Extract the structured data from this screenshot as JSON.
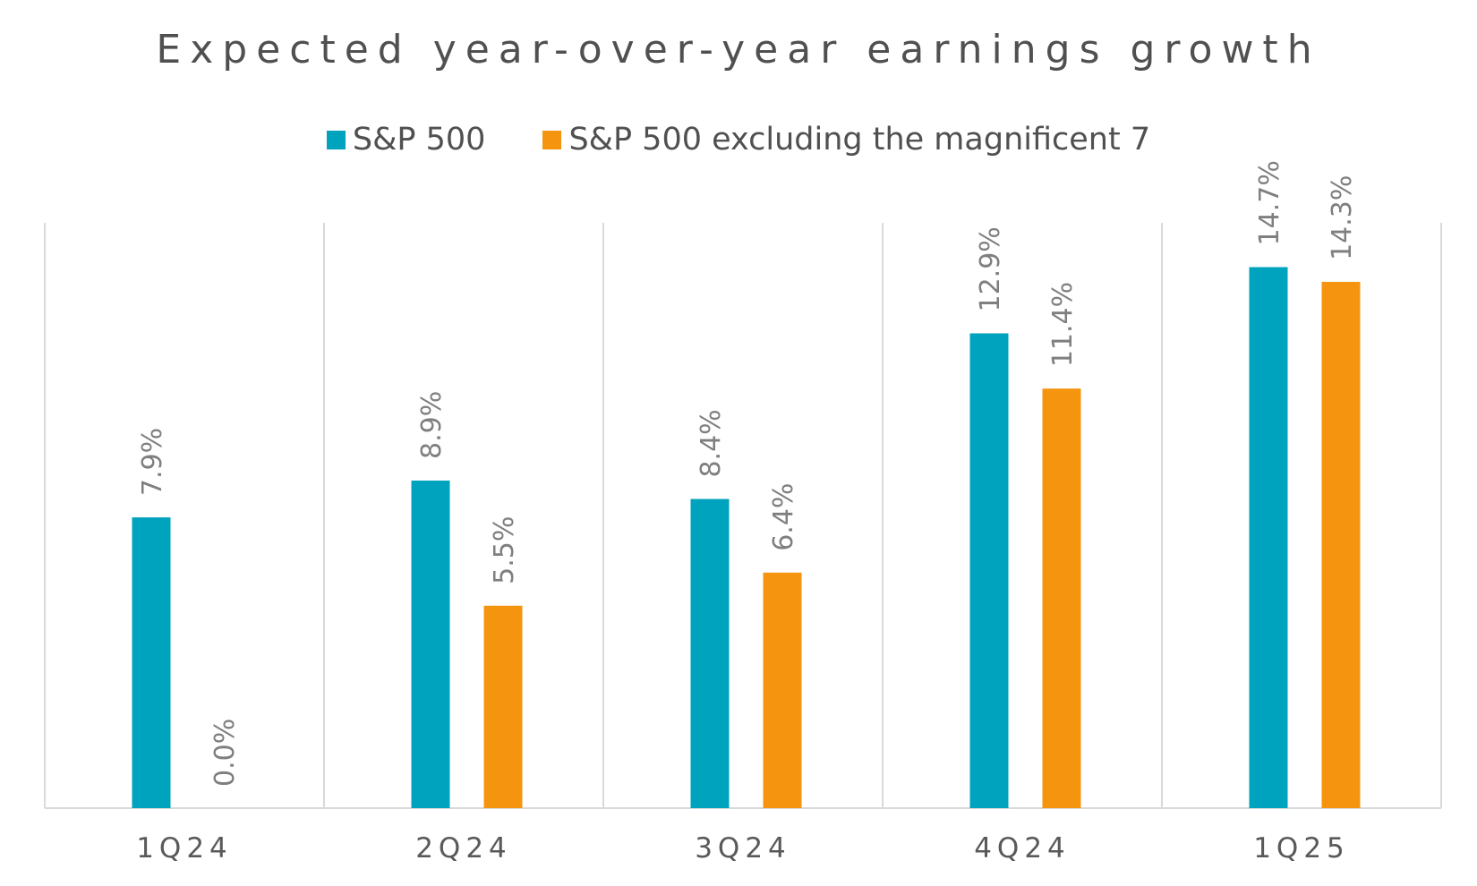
{
  "chart_data": {
    "type": "bar",
    "title": "Expected year-over-year earnings growth",
    "categories": [
      "1Q24",
      "2Q24",
      "3Q24",
      "4Q24",
      "1Q25"
    ],
    "series": [
      {
        "name": "S&P 500",
        "color": "#00A3BE",
        "values": [
          7.9,
          8.9,
          8.4,
          12.9,
          14.7
        ],
        "labels": [
          "7.9%",
          "8.9%",
          "8.4%",
          "12.9%",
          "14.7%"
        ]
      },
      {
        "name": "S&P 500 excluding the magnificent 7",
        "color": "#F5950F",
        "values": [
          0.0,
          5.5,
          6.4,
          11.4,
          14.3
        ],
        "labels": [
          "0.0%",
          "5.5%",
          "6.4%",
          "11.4%",
          "14.3%"
        ]
      }
    ],
    "ylim": [
      0,
      16
    ],
    "grid": "vertical separators between categories",
    "legend_position": "top-center",
    "xlabel": "",
    "ylabel": ""
  }
}
